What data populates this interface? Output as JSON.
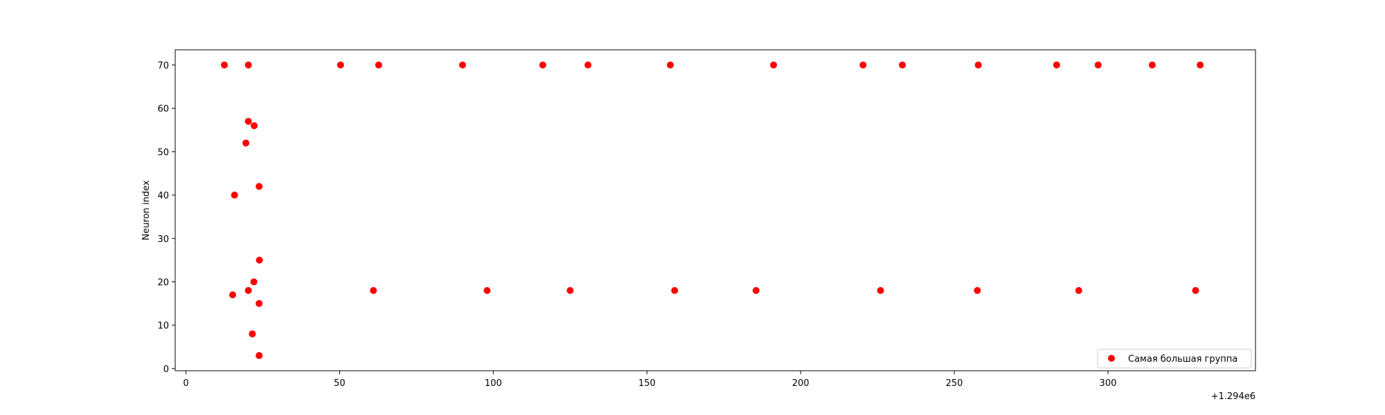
{
  "chart_data": {
    "type": "scatter",
    "title": "",
    "xlabel": "",
    "ylabel": "Neuron index",
    "offset_label": "+1.294e6",
    "xlim": [
      -3.5,
      348
    ],
    "ylim": [
      -0.5,
      73.5
    ],
    "xticks": [
      0,
      50,
      100,
      150,
      200,
      250,
      300
    ],
    "yticks": [
      0,
      10,
      20,
      30,
      40,
      50,
      60,
      70
    ],
    "grid": false,
    "legend_position": "lower-right",
    "series": [
      {
        "name": "Самая большая группа",
        "color": "#ff0000",
        "points": [
          {
            "x": 12.5,
            "y": 70
          },
          {
            "x": 20.3,
            "y": 70
          },
          {
            "x": 50.3,
            "y": 70
          },
          {
            "x": 62.7,
            "y": 70
          },
          {
            "x": 90.0,
            "y": 70
          },
          {
            "x": 116.1,
            "y": 70
          },
          {
            "x": 130.8,
            "y": 70
          },
          {
            "x": 157.6,
            "y": 70
          },
          {
            "x": 191.2,
            "y": 70
          },
          {
            "x": 220.3,
            "y": 70
          },
          {
            "x": 233.1,
            "y": 70
          },
          {
            "x": 257.8,
            "y": 70
          },
          {
            "x": 283.3,
            "y": 70
          },
          {
            "x": 296.8,
            "y": 70
          },
          {
            "x": 314.4,
            "y": 70
          },
          {
            "x": 330.0,
            "y": 70
          },
          {
            "x": 20.3,
            "y": 57
          },
          {
            "x": 22.2,
            "y": 56
          },
          {
            "x": 19.5,
            "y": 52
          },
          {
            "x": 15.8,
            "y": 40
          },
          {
            "x": 23.8,
            "y": 42
          },
          {
            "x": 23.9,
            "y": 25
          },
          {
            "x": 22.1,
            "y": 20
          },
          {
            "x": 20.3,
            "y": 18
          },
          {
            "x": 15.2,
            "y": 17
          },
          {
            "x": 23.8,
            "y": 15
          },
          {
            "x": 21.6,
            "y": 8
          },
          {
            "x": 23.8,
            "y": 3
          },
          {
            "x": 61.0,
            "y": 18
          },
          {
            "x": 98.0,
            "y": 18
          },
          {
            "x": 125.0,
            "y": 18
          },
          {
            "x": 159.0,
            "y": 18
          },
          {
            "x": 185.5,
            "y": 18
          },
          {
            "x": 226.0,
            "y": 18
          },
          {
            "x": 257.5,
            "y": 18
          },
          {
            "x": 290.5,
            "y": 18
          },
          {
            "x": 328.5,
            "y": 18
          }
        ]
      }
    ]
  }
}
